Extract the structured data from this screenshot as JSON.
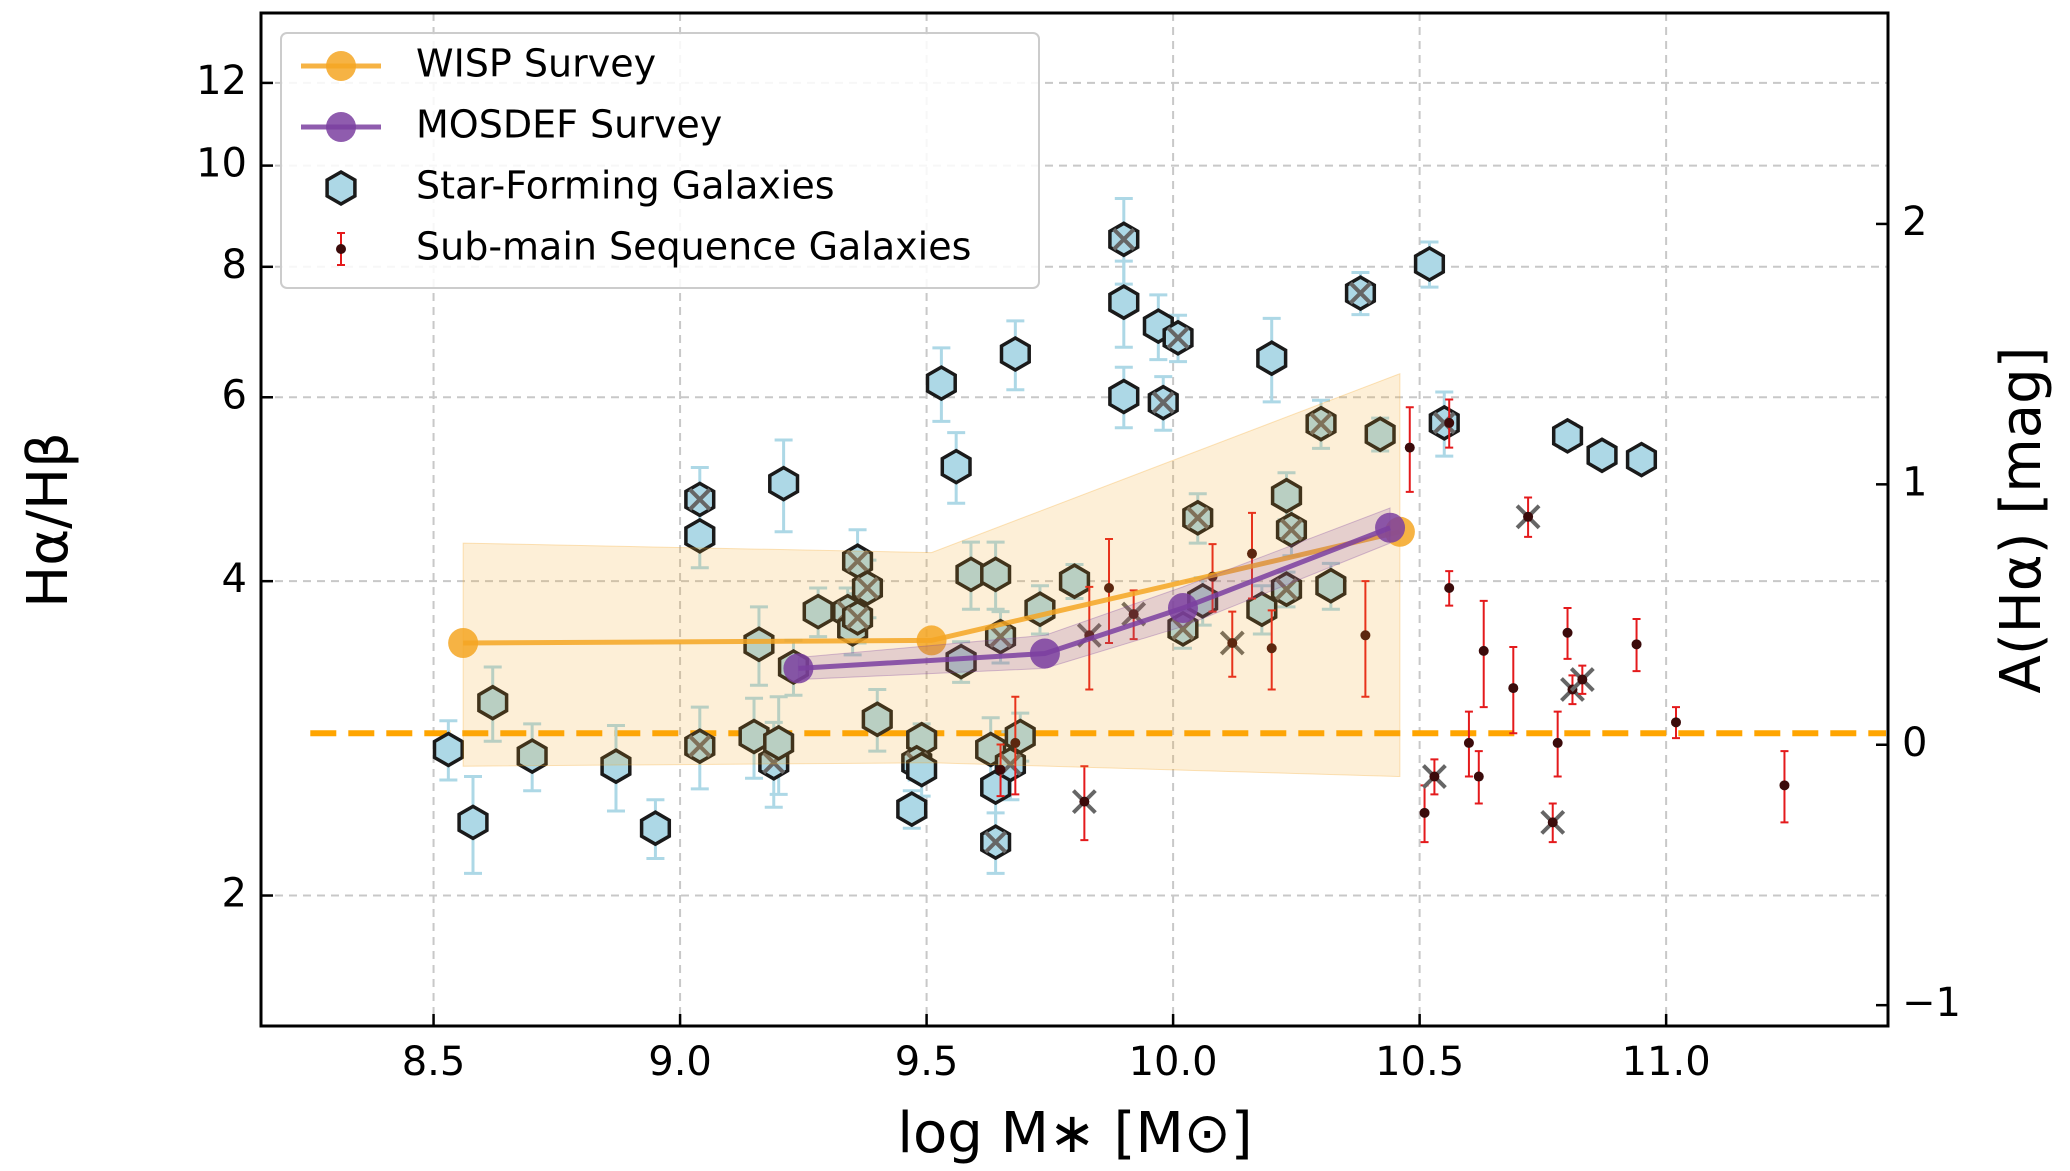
{
  "chart_data": {
    "type": "scatter",
    "xlabel": "log M∗ [M⊙]",
    "ylabel": "Hα/Hβ",
    "y2label": "A(Hα) [mag]",
    "xlim": [
      8.15,
      11.45
    ],
    "ylim": [
      1.5,
      14
    ],
    "ylog": true,
    "y2lim": [
      -1.08,
      2.81
    ],
    "xticks": [
      8.5,
      {
        "value": 9,
        "label": "9.0"
      },
      9.5,
      {
        "value": 10,
        "label": "10.0"
      },
      10.5,
      {
        "value": 11,
        "label": "11.0"
      }
    ],
    "yticks": [
      2,
      4,
      6,
      8,
      10,
      12
    ],
    "y2ticks": [
      {
        "value": -1,
        "label": "−1"
      },
      0,
      1,
      2
    ],
    "grid": true,
    "legend": "upper-left",
    "hline": {
      "value": 2.86,
      "color": "#ffa500"
    },
    "series": [
      {
        "name": "WISP Survey",
        "kind": "line",
        "color": "#f5a623",
        "x": [
          8.56,
          9.51,
          10.46
        ],
        "values": [
          3.49,
          3.51,
          4.46
        ],
        "band": {
          "x": [
            8.56,
            9.51,
            10.46
          ],
          "lower": [
            2.66,
            2.68,
            2.6
          ],
          "upper": [
            4.35,
            4.26,
            6.32
          ]
        }
      },
      {
        "name": "MOSDEF Survey",
        "kind": "line",
        "color": "#7b3fa0",
        "x": [
          9.24,
          9.74,
          10.02,
          10.44
        ],
        "values": [
          3.3,
          3.41,
          3.77,
          4.5
        ],
        "band": {
          "x": [
            9.24,
            9.74,
            10.02,
            10.44
          ],
          "lower": [
            3.22,
            3.3,
            3.62,
            4.35
          ],
          "upper": [
            3.38,
            3.55,
            3.95,
            4.7
          ]
        }
      },
      {
        "name": "Star-Forming Galaxies",
        "kind": "hexagon",
        "color": "#add8e6",
        "edgecolor": "#1a1a1a",
        "errorcolor": "#add8e6",
        "x": [
          8.53,
          8.58,
          8.62,
          8.7,
          8.87,
          8.95,
          9.04,
          9.04,
          9.04,
          9.15,
          9.16,
          9.19,
          9.2,
          9.21,
          9.23,
          9.28,
          9.34,
          9.35,
          9.36,
          9.38,
          9.36,
          9.4,
          9.47,
          9.49,
          9.48,
          9.49,
          9.53,
          9.56,
          9.57,
          9.59,
          9.64,
          9.63,
          9.64,
          9.64,
          9.65,
          9.68,
          9.67,
          9.69,
          9.73,
          9.8,
          9.9,
          9.9,
          9.9,
          9.97,
          10.01,
          9.98,
          10.02,
          10.05,
          10.06,
          10.18,
          10.2,
          10.23,
          10.23,
          10.24,
          10.3,
          10.32,
          10.38,
          10.42,
          10.52,
          10.55,
          10.8,
          10.87,
          10.95
        ],
        "values": [
          2.76,
          2.35,
          3.06,
          2.72,
          2.66,
          2.32,
          4.79,
          4.42,
          2.78,
          2.84,
          3.48,
          2.68,
          2.8,
          4.96,
          3.31,
          3.74,
          3.74,
          3.6,
          4.18,
          3.94,
          3.69,
          2.95,
          2.42,
          2.82,
          2.68,
          2.64,
          6.19,
          5.15,
          3.35,
          4.06,
          4.06,
          2.76,
          2.54,
          2.25,
          3.54,
          6.6,
          2.67,
          2.84,
          3.76,
          4.0,
          8.5,
          7.4,
          6.01,
          7.02,
          6.84,
          5.93,
          3.6,
          4.6,
          3.83,
          3.76,
          6.54,
          3.93,
          4.83,
          4.48,
          5.66,
          3.96,
          7.55,
          5.53,
          8.05,
          5.67,
          5.51,
          5.28,
          5.23
        ],
        "errors": [
          0.18,
          0.25,
          0.25,
          0.2,
          0.25,
          0.15,
          0.35,
          0.3,
          0.25,
          0.25,
          0.3,
          0.25,
          0.3,
          0.5,
          0.2,
          0.2,
          0.2,
          0.2,
          0.3,
          0.25,
          0.2,
          0.2,
          0.1,
          0.1,
          0.1,
          0.15,
          0.5,
          0.4,
          0.15,
          0.3,
          0.3,
          0.2,
          0.25,
          0.15,
          0.2,
          0.5,
          0.2,
          0.15,
          0.2,
          0.15,
          0.8,
          0.7,
          0.4,
          0.5,
          0.35,
          0.35,
          0.15,
          0.25,
          0.2,
          0.2,
          0.6,
          0.15,
          0.25,
          0.25,
          0.3,
          0.2,
          0.35,
          0.2,
          0.4,
          0.4,
          0.15,
          0.1,
          0.1
        ],
        "crossed": [
          false,
          false,
          false,
          false,
          false,
          false,
          true,
          false,
          true,
          false,
          false,
          true,
          false,
          false,
          false,
          false,
          true,
          false,
          true,
          true,
          true,
          false,
          false,
          false,
          true,
          false,
          false,
          false,
          false,
          false,
          false,
          false,
          false,
          true,
          true,
          false,
          true,
          false,
          false,
          false,
          true,
          false,
          false,
          false,
          true,
          true,
          true,
          true,
          false,
          false,
          false,
          true,
          false,
          true,
          true,
          false,
          true,
          false,
          false,
          true,
          false,
          false,
          false
        ]
      },
      {
        "name": "Sub-main Sequence Galaxies",
        "kind": "dot",
        "color": "#3b0b0b",
        "errorcolor": "#e41a1c",
        "x": [
          9.65,
          9.68,
          9.82,
          9.83,
          9.87,
          9.92,
          10.08,
          10.12,
          10.16,
          10.2,
          10.39,
          10.48,
          10.51,
          10.53,
          10.56,
          10.56,
          10.6,
          10.62,
          10.63,
          10.69,
          10.72,
          10.77,
          10.78,
          10.8,
          10.81,
          10.83,
          10.94,
          11.02,
          11.24
        ],
        "values": [
          2.64,
          2.8,
          2.46,
          3.55,
          3.94,
          3.72,
          4.04,
          3.49,
          4.25,
          3.45,
          3.55,
          5.37,
          2.4,
          2.6,
          5.67,
          3.94,
          2.8,
          2.6,
          3.43,
          3.16,
          4.61,
          2.35,
          2.8,
          3.57,
          3.15,
          3.22,
          3.48,
          2.93,
          2.55
        ],
        "errors": [
          0.15,
          0.3,
          0.2,
          0.4,
          0.45,
          0.2,
          0.3,
          0.25,
          0.4,
          0.3,
          0.45,
          0.5,
          0.15,
          0.1,
          0.3,
          0.15,
          0.2,
          0.15,
          0.4,
          0.3,
          0.2,
          0.1,
          0.2,
          0.2,
          0.1,
          0.1,
          0.2,
          0.1,
          0.2
        ],
        "crossed": [
          false,
          false,
          true,
          true,
          false,
          true,
          false,
          true,
          false,
          false,
          false,
          false,
          false,
          true,
          false,
          false,
          false,
          false,
          false,
          false,
          true,
          true,
          false,
          false,
          true,
          true,
          false,
          false,
          false
        ]
      }
    ]
  }
}
